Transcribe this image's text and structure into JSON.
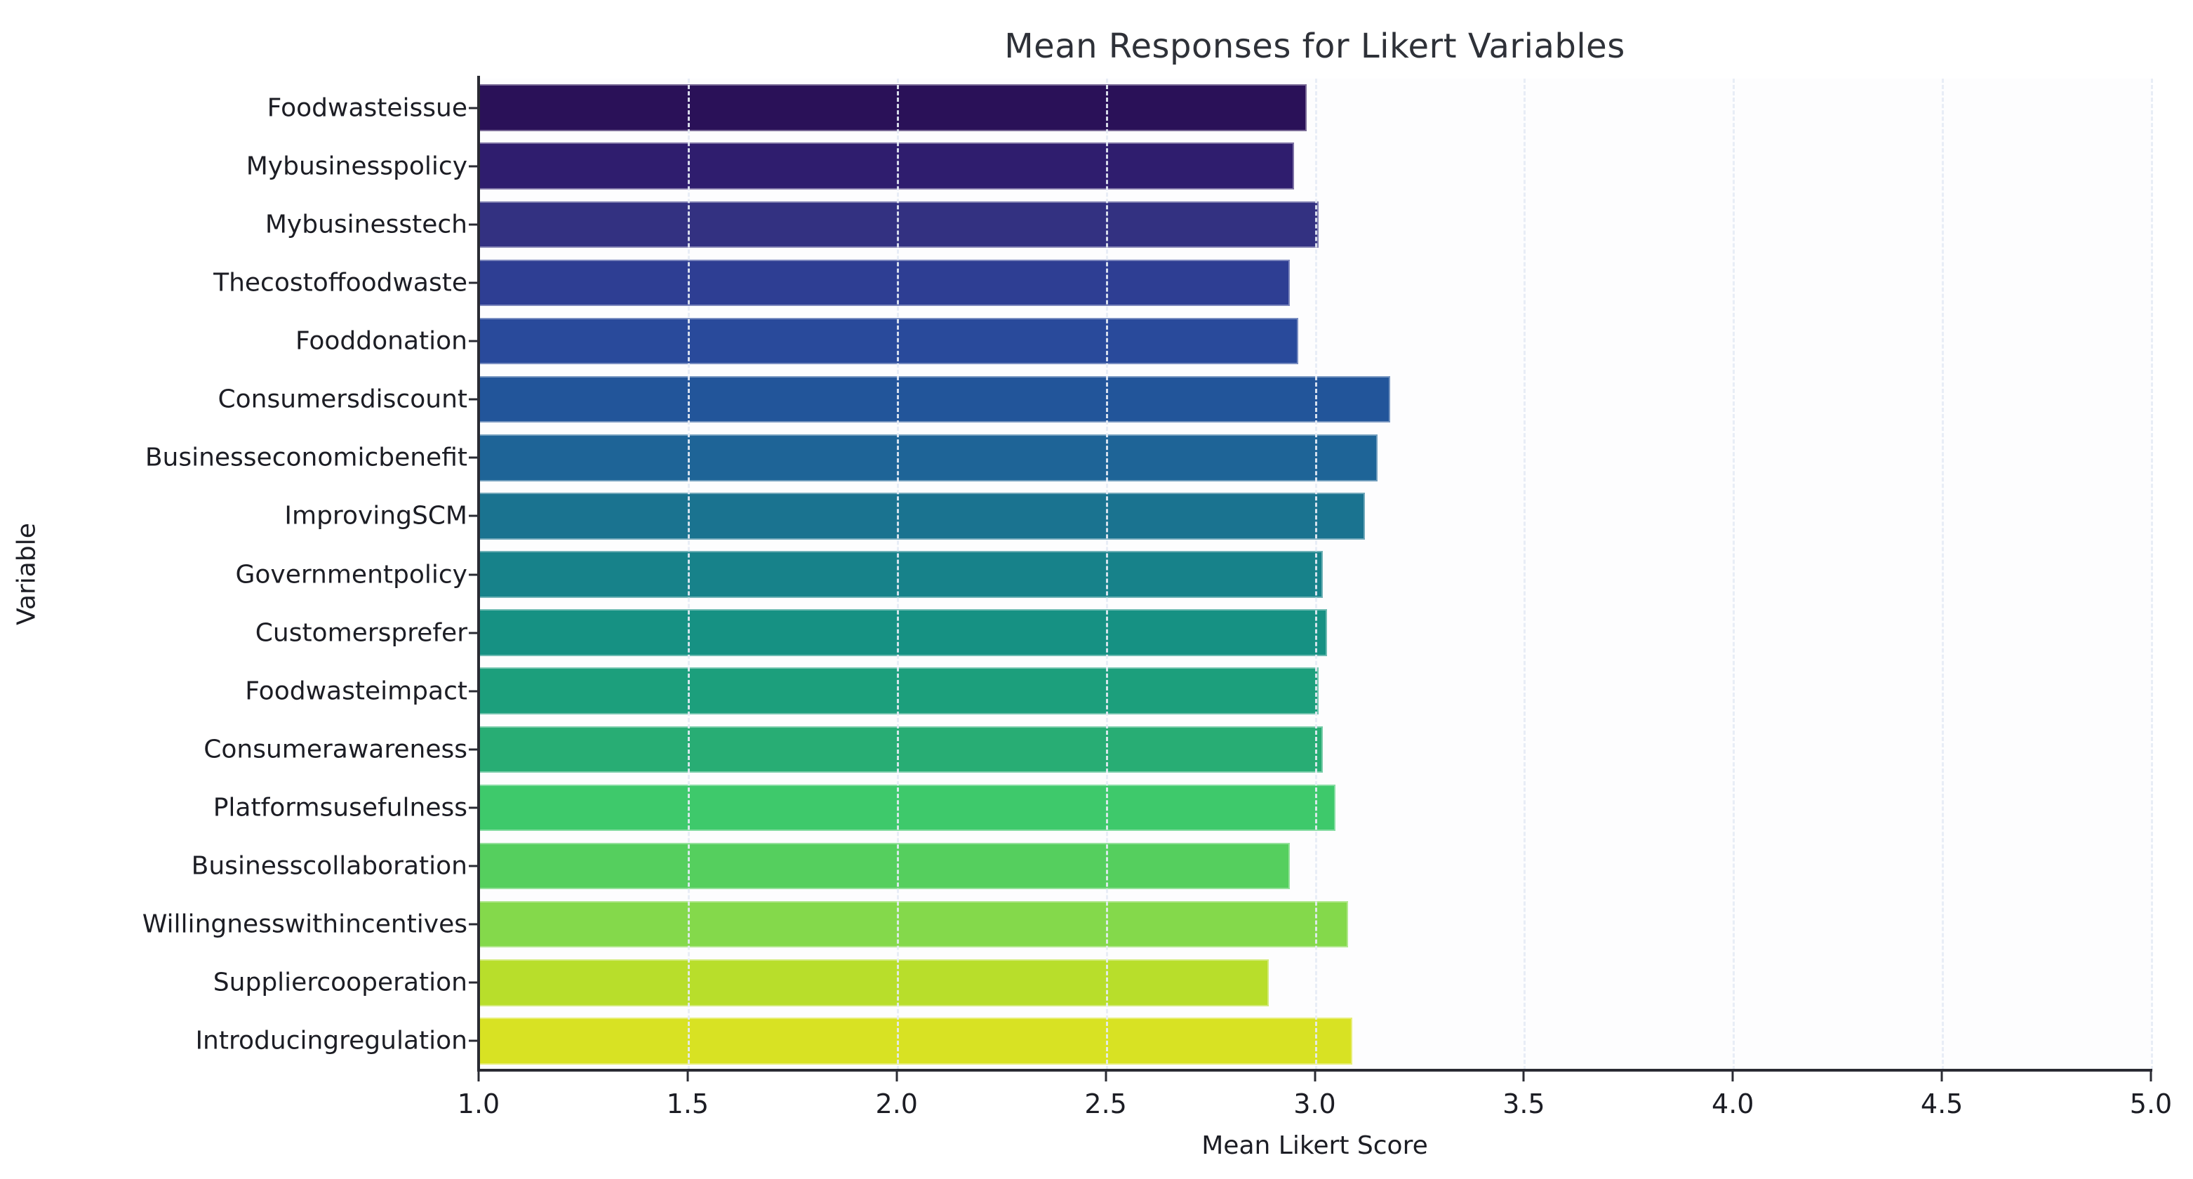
{
  "chart_data": {
    "type": "bar",
    "orientation": "horizontal",
    "title": "Mean Responses for Likert Variables",
    "xlabel": "Mean Likert Score",
    "ylabel": "Variable",
    "xlim": [
      1.0,
      5.0
    ],
    "xticks": [
      "1.0",
      "1.5",
      "2.0",
      "2.5",
      "3.0",
      "3.5",
      "4.0",
      "4.5",
      "5.0"
    ],
    "grid": "vertical-dashed",
    "legend": "none",
    "categories": [
      "Foodwasteissue",
      "Mybusinesspolicy",
      "Mybusinesstech",
      "Thecostoffoodwaste",
      "Fooddonation",
      "Consumersdiscount",
      "Businesseconomicbenefit",
      "ImprovingSCM",
      "Governmentpolicy",
      "Customersprefer",
      "Foodwasteimpact",
      "Consumerawareness",
      "Platformsusefulness",
      "Businesscollaboration",
      "Willingnesswithincentives",
      "Suppliercooperation",
      "Introducingregulation"
    ],
    "values": [
      2.98,
      2.95,
      3.01,
      2.94,
      2.96,
      3.18,
      3.15,
      3.12,
      3.02,
      3.03,
      3.01,
      3.02,
      3.05,
      2.94,
      3.08,
      2.89,
      3.09
    ],
    "bar_colors": [
      "#2a1158",
      "#2f1d6e",
      "#333181",
      "#2e3e93",
      "#294a9b",
      "#22559a",
      "#1e6497",
      "#1a7390",
      "#17828a",
      "#169183",
      "#1c9f7c",
      "#28ad74",
      "#3ec96b",
      "#55cf5e",
      "#84d94b",
      "#b8de2b",
      "#d8e223"
    ],
    "colors": {
      "spine": "#2a2b33",
      "tick_text": "#1c1d24",
      "title_text": "#2e3138",
      "background": "#ffffff"
    }
  }
}
